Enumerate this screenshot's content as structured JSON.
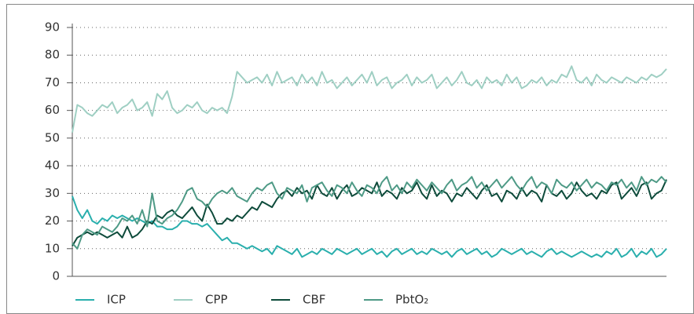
{
  "chart_data": {
    "type": "line",
    "ylim": [
      0,
      90
    ],
    "yticks": [
      0,
      10,
      20,
      30,
      40,
      50,
      60,
      70,
      80,
      90
    ],
    "grid": true,
    "legend": "bottom",
    "series": [
      {
        "name": "ICP",
        "color": "#2aafad",
        "values": [
          29,
          24,
          21,
          24,
          20,
          19,
          21,
          20,
          22,
          21,
          22,
          21,
          20,
          21,
          20,
          19,
          20,
          18,
          18,
          17,
          17,
          18,
          20,
          20,
          19,
          19,
          18,
          19,
          17,
          15,
          13,
          14,
          12,
          12,
          11,
          10,
          11,
          10,
          9,
          10,
          8,
          11,
          10,
          9,
          8,
          10,
          7,
          8,
          9,
          8,
          10,
          9,
          8,
          10,
          9,
          8,
          9,
          10,
          8,
          9,
          10,
          8,
          9,
          7,
          9,
          10,
          8,
          9,
          10,
          8,
          9,
          8,
          10,
          9,
          8,
          9,
          7,
          9,
          10,
          8,
          9,
          10,
          8,
          9,
          7,
          8,
          10,
          9,
          8,
          9,
          10,
          8,
          9,
          8,
          7,
          9,
          10,
          8,
          9,
          8,
          7,
          8,
          9,
          8,
          7,
          8,
          7,
          9,
          8,
          10,
          7,
          8,
          10,
          7,
          9,
          8,
          10,
          7,
          8,
          10
        ]
      },
      {
        "name": "CPP",
        "color": "#9fcfc3",
        "values": [
          52,
          62,
          61,
          59,
          58,
          60,
          62,
          61,
          63,
          59,
          61,
          62,
          64,
          60,
          61,
          63,
          58,
          66,
          64,
          67,
          61,
          59,
          60,
          62,
          61,
          63,
          60,
          59,
          61,
          60,
          61,
          59,
          65,
          74,
          72,
          70,
          71,
          72,
          70,
          73,
          69,
          74,
          70,
          71,
          72,
          69,
          73,
          70,
          72,
          69,
          74,
          70,
          71,
          68,
          70,
          72,
          69,
          71,
          73,
          70,
          74,
          69,
          71,
          72,
          68,
          70,
          71,
          73,
          69,
          72,
          70,
          71,
          73,
          68,
          70,
          72,
          69,
          71,
          74,
          70,
          69,
          71,
          68,
          72,
          70,
          71,
          69,
          73,
          70,
          72,
          68,
          69,
          71,
          70,
          72,
          69,
          71,
          70,
          73,
          72,
          76,
          71,
          70,
          72,
          69,
          73,
          71,
          70,
          72,
          71,
          70,
          72,
          71,
          70,
          72,
          71,
          73,
          72,
          73,
          75
        ]
      },
      {
        "name": "CBF",
        "color": "#0e4b3b",
        "values": [
          11,
          14,
          15,
          16,
          15,
          16,
          15,
          14,
          15,
          16,
          14,
          18,
          14,
          15,
          17,
          20,
          19,
          22,
          21,
          23,
          24,
          22,
          21,
          23,
          25,
          22,
          20,
          26,
          23,
          19,
          19,
          21,
          20,
          22,
          21,
          23,
          25,
          24,
          27,
          26,
          25,
          28,
          30,
          31,
          29,
          32,
          30,
          31,
          28,
          33,
          30,
          29,
          32,
          28,
          31,
          33,
          29,
          30,
          32,
          31,
          30,
          34,
          29,
          31,
          30,
          28,
          32,
          30,
          31,
          34,
          30,
          28,
          33,
          29,
          31,
          30,
          27,
          30,
          29,
          32,
          30,
          28,
          31,
          33,
          29,
          30,
          27,
          31,
          30,
          28,
          32,
          29,
          31,
          30,
          27,
          33,
          30,
          29,
          31,
          28,
          30,
          34,
          31,
          29,
          30,
          28,
          31,
          30,
          33,
          34,
          28,
          30,
          32,
          29,
          33,
          34,
          28,
          30,
          31,
          35
        ]
      },
      {
        "name": "PbtO₂",
        "color": "#4e9a86",
        "values": [
          12,
          10,
          15,
          17,
          16,
          15,
          18,
          17,
          16,
          18,
          21,
          20,
          22,
          19,
          24,
          18,
          30,
          20,
          19,
          21,
          22,
          24,
          27,
          31,
          32,
          28,
          27,
          25,
          28,
          30,
          31,
          30,
          32,
          29,
          28,
          27,
          30,
          32,
          31,
          33,
          34,
          30,
          28,
          32,
          31,
          30,
          33,
          27,
          32,
          33,
          34,
          31,
          29,
          33,
          32,
          30,
          34,
          31,
          29,
          33,
          32,
          30,
          34,
          36,
          31,
          33,
          30,
          34,
          32,
          35,
          33,
          31,
          34,
          32,
          30,
          33,
          35,
          31,
          33,
          34,
          36,
          32,
          34,
          31,
          33,
          35,
          32,
          34,
          36,
          33,
          31,
          34,
          36,
          32,
          34,
          33,
          30,
          35,
          33,
          32,
          34,
          31,
          33,
          35,
          32,
          34,
          33,
          31,
          34,
          33,
          35,
          32,
          34,
          31,
          36,
          33,
          35,
          34,
          36,
          34
        ]
      }
    ]
  }
}
